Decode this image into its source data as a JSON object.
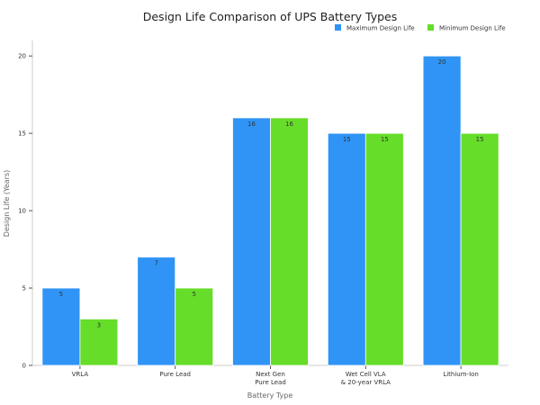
{
  "chart_data": {
    "type": "bar",
    "title": "Design Life Comparison of UPS Battery Types",
    "xlabel": "Battery Type",
    "ylabel": "Design Life (Years)",
    "ylim": [
      0,
      21
    ],
    "yticks": [
      0,
      5,
      10,
      15,
      20
    ],
    "grid": false,
    "legend_position": "top-right",
    "categories": [
      [
        "VRLA"
      ],
      [
        "Pure Lead"
      ],
      [
        "Next Gen",
        "Pure Lead"
      ],
      [
        "Wet Cell VLA",
        "& 20-year VRLA"
      ],
      [
        "Lithium-Ion"
      ]
    ],
    "series": [
      {
        "name": "Maximum Design Life",
        "color": "#2f94f5",
        "values": [
          5,
          7,
          16,
          15,
          20
        ]
      },
      {
        "name": "Minimum Design Life",
        "color": "#66dd29",
        "values": [
          3,
          5,
          16,
          15,
          15
        ]
      }
    ]
  }
}
